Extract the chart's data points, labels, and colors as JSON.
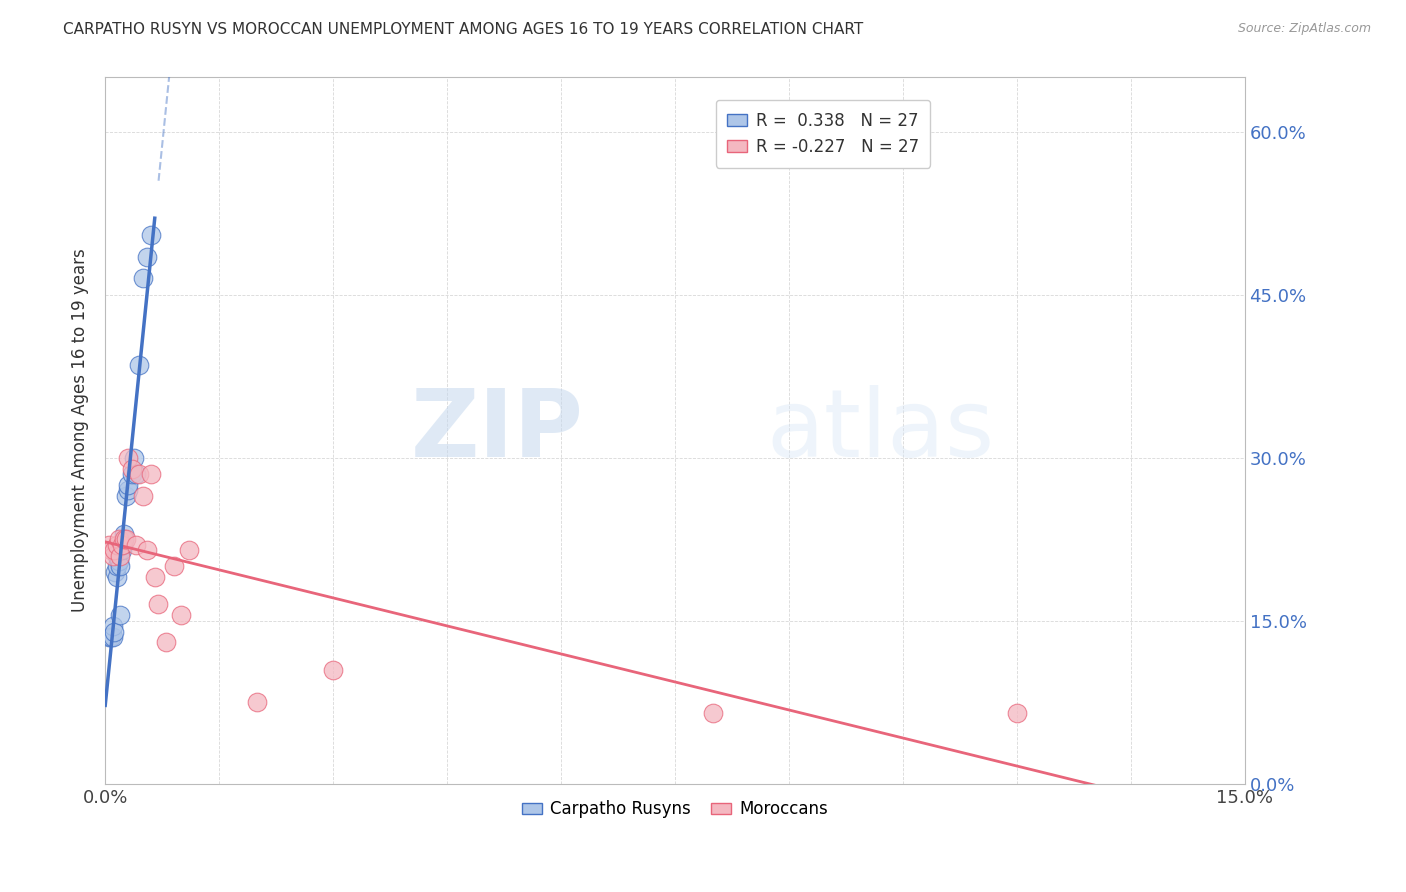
{
  "title": "CARPATHO RUSYN VS MOROCCAN UNEMPLOYMENT AMONG AGES 16 TO 19 YEARS CORRELATION CHART",
  "source": "Source: ZipAtlas.com",
  "ylabel": "Unemployment Among Ages 16 to 19 years",
  "xlim": [
    0.0,
    0.15
  ],
  "ylim": [
    0.0,
    0.65
  ],
  "xticks": [
    0.0,
    0.015,
    0.03,
    0.045,
    0.06,
    0.075,
    0.09,
    0.105,
    0.12,
    0.135,
    0.15
  ],
  "yticks": [
    0.0,
    0.15,
    0.3,
    0.45,
    0.6
  ],
  "right_ytick_labels": [
    "0.0%",
    "15.0%",
    "30.0%",
    "45.0%",
    "60.0%"
  ],
  "legend_blue_r": "R =  0.338",
  "legend_blue_n": "N = 27",
  "legend_pink_r": "R = -0.227",
  "legend_pink_n": "N = 27",
  "legend_label_blue": "Carpatho Rusyns",
  "legend_label_pink": "Moroccans",
  "blue_scatter_x": [
    0.0005,
    0.0008,
    0.001,
    0.001,
    0.0012,
    0.0013,
    0.0015,
    0.0015,
    0.0015,
    0.0018,
    0.002,
    0.002,
    0.002,
    0.0022,
    0.0023,
    0.0025,
    0.0025,
    0.0028,
    0.003,
    0.003,
    0.0035,
    0.0038,
    0.004,
    0.0045,
    0.005,
    0.0055,
    0.006
  ],
  "blue_scatter_y": [
    0.135,
    0.135,
    0.135,
    0.145,
    0.14,
    0.195,
    0.19,
    0.2,
    0.21,
    0.205,
    0.155,
    0.2,
    0.215,
    0.215,
    0.22,
    0.225,
    0.23,
    0.265,
    0.27,
    0.275,
    0.285,
    0.3,
    0.285,
    0.385,
    0.465,
    0.485,
    0.505
  ],
  "pink_scatter_x": [
    0.0005,
    0.0008,
    0.001,
    0.0012,
    0.0015,
    0.0018,
    0.002,
    0.0022,
    0.0025,
    0.0028,
    0.003,
    0.0035,
    0.004,
    0.0045,
    0.005,
    0.0055,
    0.006,
    0.0065,
    0.007,
    0.008,
    0.009,
    0.01,
    0.011,
    0.02,
    0.03,
    0.08,
    0.12
  ],
  "pink_scatter_y": [
    0.22,
    0.215,
    0.21,
    0.215,
    0.22,
    0.225,
    0.21,
    0.22,
    0.225,
    0.225,
    0.3,
    0.29,
    0.22,
    0.285,
    0.265,
    0.215,
    0.285,
    0.19,
    0.165,
    0.13,
    0.2,
    0.155,
    0.215,
    0.075,
    0.105,
    0.065,
    0.065
  ],
  "blue_line_color": "#4472c4",
  "pink_line_color": "#e8657a",
  "blue_scatter_color": "#aec6e8",
  "pink_scatter_color": "#f4b8c1",
  "watermark_zip": "ZIP",
  "watermark_atlas": "atlas",
  "background_color": "#ffffff",
  "grid_color": "#d8d8d8"
}
